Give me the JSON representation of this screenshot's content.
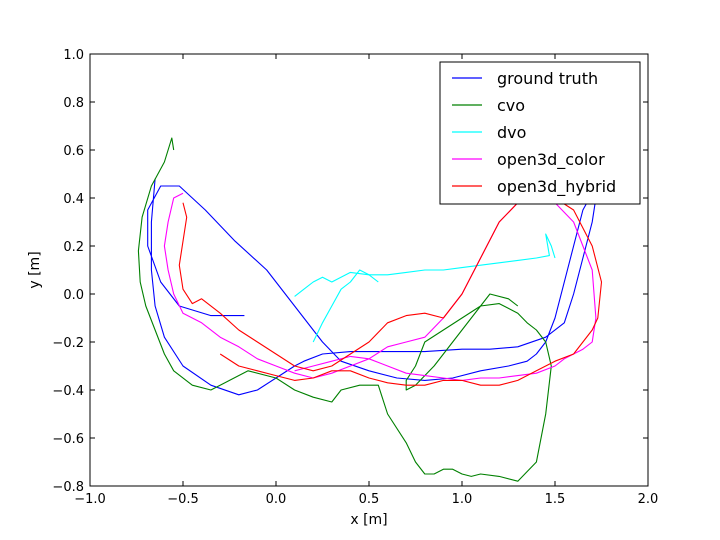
{
  "chart_data": {
    "type": "line",
    "title": "",
    "xlabel": "x [m]",
    "ylabel": "y [m]",
    "xlim": [
      -1.0,
      2.0
    ],
    "ylim": [
      -0.8,
      1.0
    ],
    "xticks": [
      "−1.0",
      "−0.5",
      "0.0",
      "0.5",
      "1.0",
      "1.5",
      "2.0"
    ],
    "xtick_values": [
      -1.0,
      -0.5,
      0.0,
      0.5,
      1.0,
      1.5,
      2.0
    ],
    "yticks": [
      "−0.8",
      "−0.6",
      "−0.4",
      "−0.2",
      "0.0",
      "0.2",
      "0.4",
      "0.6",
      "0.8",
      "1.0"
    ],
    "ytick_values": [
      -0.8,
      -0.6,
      -0.4,
      -0.2,
      0.0,
      0.2,
      0.4,
      0.6,
      0.8,
      1.0
    ],
    "grid": false,
    "legend_position": "top-right",
    "series": [
      {
        "name": "ground truth",
        "color": "#0000ff",
        "x": [
          -0.17,
          -0.35,
          -0.52,
          -0.62,
          -0.69,
          -0.69,
          -0.62,
          -0.52,
          -0.38,
          -0.22,
          -0.05,
          0.05,
          0.15,
          0.25,
          0.35,
          0.5,
          0.65,
          0.8,
          0.95,
          1.1,
          1.25,
          1.35,
          1.4,
          1.45,
          1.5,
          1.55,
          1.6,
          1.65,
          1.7,
          1.72,
          1.7,
          1.65,
          1.6,
          1.55,
          1.45,
          1.3,
          1.15,
          1.0,
          0.8,
          0.6,
          0.4,
          0.25,
          0.15,
          0.1,
          0.0,
          -0.1,
          -0.2,
          -0.35,
          -0.5,
          -0.6,
          -0.65,
          -0.67,
          -0.67,
          -0.65
        ],
        "y": [
          -0.09,
          -0.09,
          -0.05,
          0.05,
          0.2,
          0.35,
          0.45,
          0.45,
          0.35,
          0.22,
          0.1,
          0.0,
          -0.1,
          -0.2,
          -0.28,
          -0.32,
          -0.35,
          -0.36,
          -0.35,
          -0.32,
          -0.3,
          -0.28,
          -0.25,
          -0.2,
          -0.1,
          0.05,
          0.2,
          0.35,
          0.42,
          0.4,
          0.3,
          0.15,
          0.0,
          -0.12,
          -0.18,
          -0.22,
          -0.23,
          -0.23,
          -0.24,
          -0.24,
          -0.24,
          -0.25,
          -0.28,
          -0.3,
          -0.35,
          -0.4,
          -0.42,
          -0.38,
          -0.3,
          -0.18,
          -0.05,
          0.1,
          0.3,
          0.48
        ]
      },
      {
        "name": "cvo",
        "color": "#008000",
        "x": [
          -0.55,
          -0.56,
          -0.6,
          -0.67,
          -0.72,
          -0.74,
          -0.73,
          -0.7,
          -0.65,
          -0.6,
          -0.55,
          -0.45,
          -0.35,
          -0.25,
          -0.15,
          0.0,
          0.1,
          0.2,
          0.3,
          0.35,
          0.45,
          0.55,
          0.6,
          0.7,
          0.75,
          0.8,
          0.85,
          0.9,
          0.95,
          1.0,
          1.05,
          1.1,
          1.2,
          1.3,
          1.4,
          1.45,
          1.48,
          1.45,
          1.4,
          1.35,
          1.3,
          1.2,
          1.1,
          1.0,
          0.9,
          0.8,
          0.75,
          0.7,
          0.7,
          0.75,
          0.85,
          0.95,
          1.05,
          1.15,
          1.25,
          1.3
        ],
        "y": [
          0.6,
          0.65,
          0.55,
          0.45,
          0.32,
          0.18,
          0.05,
          -0.05,
          -0.15,
          -0.25,
          -0.32,
          -0.38,
          -0.4,
          -0.36,
          -0.32,
          -0.35,
          -0.4,
          -0.43,
          -0.45,
          -0.4,
          -0.38,
          -0.38,
          -0.5,
          -0.62,
          -0.7,
          -0.75,
          -0.75,
          -0.73,
          -0.73,
          -0.75,
          -0.76,
          -0.75,
          -0.76,
          -0.78,
          -0.7,
          -0.5,
          -0.3,
          -0.2,
          -0.15,
          -0.12,
          -0.08,
          -0.04,
          -0.05,
          -0.1,
          -0.15,
          -0.2,
          -0.3,
          -0.36,
          -0.4,
          -0.38,
          -0.3,
          -0.2,
          -0.1,
          0.0,
          -0.02,
          -0.05
        ]
      },
      {
        "name": "dvo",
        "color": "#00ffff",
        "x": [
          0.1,
          0.15,
          0.2,
          0.25,
          0.3,
          0.4,
          0.5,
          0.6,
          0.7,
          0.8,
          0.9,
          1.0,
          1.1,
          1.2,
          1.3,
          1.4,
          1.47,
          1.45,
          1.48,
          1.5
        ],
        "y": [
          -0.01,
          0.02,
          0.05,
          0.07,
          0.05,
          0.09,
          0.08,
          0.08,
          0.09,
          0.1,
          0.1,
          0.11,
          0.12,
          0.13,
          0.14,
          0.15,
          0.16,
          0.25,
          0.2,
          0.15
        ],
        "x2": [
          0.2,
          0.25,
          0.3,
          0.35,
          0.4,
          0.45,
          0.5,
          0.55
        ],
        "y2": [
          -0.2,
          -0.12,
          -0.05,
          0.02,
          0.05,
          0.1,
          0.08,
          0.05
        ]
      },
      {
        "name": "open3d_color",
        "color": "#ff00ff",
        "x": [
          -0.5,
          -0.55,
          -0.58,
          -0.6,
          -0.58,
          -0.55,
          -0.5,
          -0.4,
          -0.3,
          -0.2,
          -0.1,
          0.0,
          0.1,
          0.2,
          0.3,
          0.4,
          0.5,
          0.6,
          0.7,
          0.8,
          0.9,
          1.0,
          1.1,
          1.2,
          1.3,
          1.4,
          1.5,
          1.6,
          1.65,
          1.7,
          1.72,
          1.7,
          1.65,
          1.6,
          1.55,
          1.5,
          1.4,
          1.3,
          1.2,
          1.1,
          1.0,
          0.9,
          0.8,
          0.7,
          0.6,
          0.5,
          0.4,
          0.3,
          0.2,
          0.1
        ],
        "y": [
          0.42,
          0.4,
          0.3,
          0.2,
          0.1,
          0.0,
          -0.08,
          -0.12,
          -0.18,
          -0.22,
          -0.27,
          -0.3,
          -0.33,
          -0.35,
          -0.33,
          -0.3,
          -0.27,
          -0.22,
          -0.2,
          -0.18,
          -0.1,
          0.0,
          0.15,
          0.3,
          0.38,
          0.4,
          0.38,
          0.3,
          0.2,
          0.1,
          -0.1,
          -0.2,
          -0.23,
          -0.25,
          -0.27,
          -0.3,
          -0.33,
          -0.34,
          -0.35,
          -0.35,
          -0.36,
          -0.35,
          -0.34,
          -0.33,
          -0.3,
          -0.27,
          -0.26,
          -0.28,
          -0.3,
          -0.32
        ]
      },
      {
        "name": "open3d_hybrid",
        "color": "#ff0000",
        "x": [
          -0.5,
          -0.48,
          -0.5,
          -0.52,
          -0.5,
          -0.45,
          -0.4,
          -0.3,
          -0.2,
          -0.1,
          0.0,
          0.1,
          0.2,
          0.3,
          0.4,
          0.5,
          0.6,
          0.7,
          0.8,
          0.9,
          1.0,
          1.1,
          1.2,
          1.3,
          1.4,
          1.5,
          1.6,
          1.7,
          1.75,
          1.73,
          1.7,
          1.65,
          1.6,
          1.5,
          1.4,
          1.3,
          1.2,
          1.1,
          1.0,
          0.9,
          0.8,
          0.7,
          0.6,
          0.5,
          0.4,
          0.3,
          0.2,
          0.1,
          0.0,
          -0.1,
          -0.2,
          -0.3
        ],
        "y": [
          0.38,
          0.32,
          0.22,
          0.12,
          0.02,
          -0.04,
          -0.02,
          -0.08,
          -0.15,
          -0.2,
          -0.25,
          -0.3,
          -0.32,
          -0.3,
          -0.25,
          -0.2,
          -0.12,
          -0.09,
          -0.08,
          -0.1,
          0.0,
          0.15,
          0.3,
          0.38,
          0.38,
          0.4,
          0.35,
          0.2,
          0.05,
          -0.1,
          -0.15,
          -0.2,
          -0.25,
          -0.28,
          -0.32,
          -0.36,
          -0.38,
          -0.38,
          -0.36,
          -0.36,
          -0.38,
          -0.38,
          -0.37,
          -0.35,
          -0.32,
          -0.32,
          -0.35,
          -0.36,
          -0.34,
          -0.32,
          -0.3,
          -0.25
        ]
      }
    ]
  }
}
